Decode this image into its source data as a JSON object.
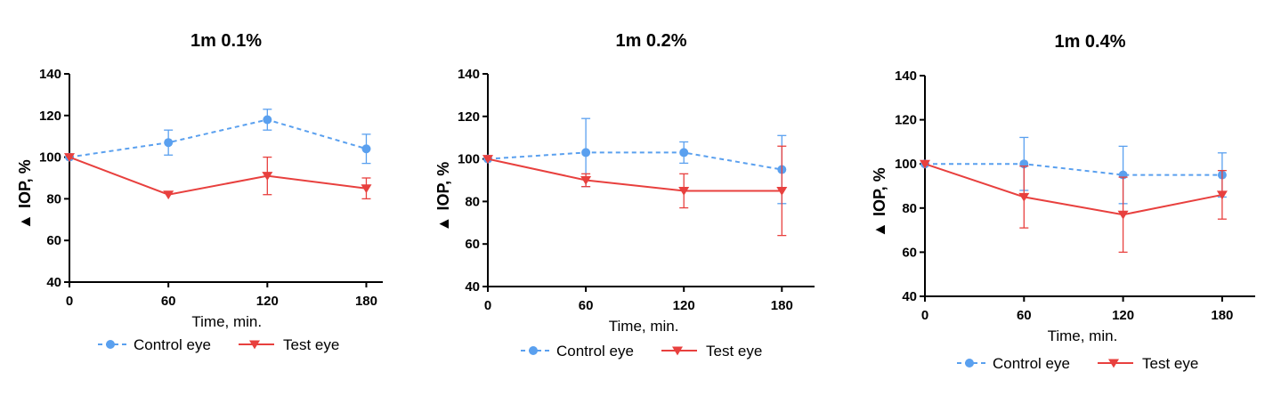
{
  "colors": {
    "control": "#5aa0ef",
    "test": "#e8403e",
    "axis": "#000000"
  },
  "legend": {
    "control_label": "Control eye",
    "test_label": "Test eye"
  },
  "chart_data": [
    {
      "type": "line",
      "title": "1m 0.1%",
      "xlabel": "Time, min.",
      "ylabel": "IOP, %",
      "ylabel_prefix_symbol": "▲",
      "x": [
        0,
        60,
        120,
        180
      ],
      "xlim": [
        0,
        190
      ],
      "ylim": [
        40,
        140
      ],
      "yticks": [
        40,
        60,
        80,
        100,
        120,
        140
      ],
      "xticks": [
        0,
        60,
        120,
        180
      ],
      "legend_position": "bottom",
      "series": [
        {
          "name": "Control eye",
          "style": "dashed",
          "marker": "circle",
          "values": [
            100,
            107,
            118,
            104
          ],
          "err": [
            0,
            6,
            5,
            7
          ]
        },
        {
          "name": "Test eye",
          "style": "solid",
          "marker": "triangle-down",
          "values": [
            100,
            82,
            91,
            85
          ],
          "err": [
            0,
            0,
            9,
            5
          ]
        }
      ]
    },
    {
      "type": "line",
      "title": "1m 0.2%",
      "xlabel": "Time, min.",
      "ylabel": "IOP, %",
      "ylabel_prefix_symbol": "▲",
      "x": [
        0,
        60,
        120,
        180
      ],
      "xlim": [
        0,
        200
      ],
      "ylim": [
        40,
        140
      ],
      "yticks": [
        40,
        60,
        80,
        100,
        120,
        140
      ],
      "xticks": [
        0,
        60,
        120,
        180
      ],
      "legend_position": "bottom",
      "series": [
        {
          "name": "Control eye",
          "style": "dashed",
          "marker": "circle",
          "values": [
            100,
            103,
            103,
            95
          ],
          "err": [
            0,
            16,
            5,
            16
          ]
        },
        {
          "name": "Test eye",
          "style": "solid",
          "marker": "triangle-down",
          "values": [
            100,
            90,
            85,
            85
          ],
          "err": [
            0,
            3,
            8,
            21
          ]
        }
      ]
    },
    {
      "type": "line",
      "title": "1m 0.4%",
      "xlabel": "Time, min.",
      "ylabel": "IOP, %",
      "ylabel_prefix_symbol": "▲",
      "x": [
        0,
        60,
        120,
        180
      ],
      "xlim": [
        0,
        200
      ],
      "ylim": [
        40,
        140
      ],
      "yticks": [
        40,
        60,
        80,
        100,
        120,
        140
      ],
      "xticks": [
        0,
        60,
        120,
        180
      ],
      "legend_position": "bottom",
      "series": [
        {
          "name": "Control eye",
          "style": "dashed",
          "marker": "circle",
          "values": [
            100,
            100,
            95,
            95
          ],
          "err": [
            0,
            12,
            13,
            10
          ]
        },
        {
          "name": "Test eye",
          "style": "solid",
          "marker": "triangle-down",
          "values": [
            100,
            85,
            77,
            86
          ],
          "err": [
            0,
            14,
            17,
            11
          ]
        }
      ]
    }
  ]
}
